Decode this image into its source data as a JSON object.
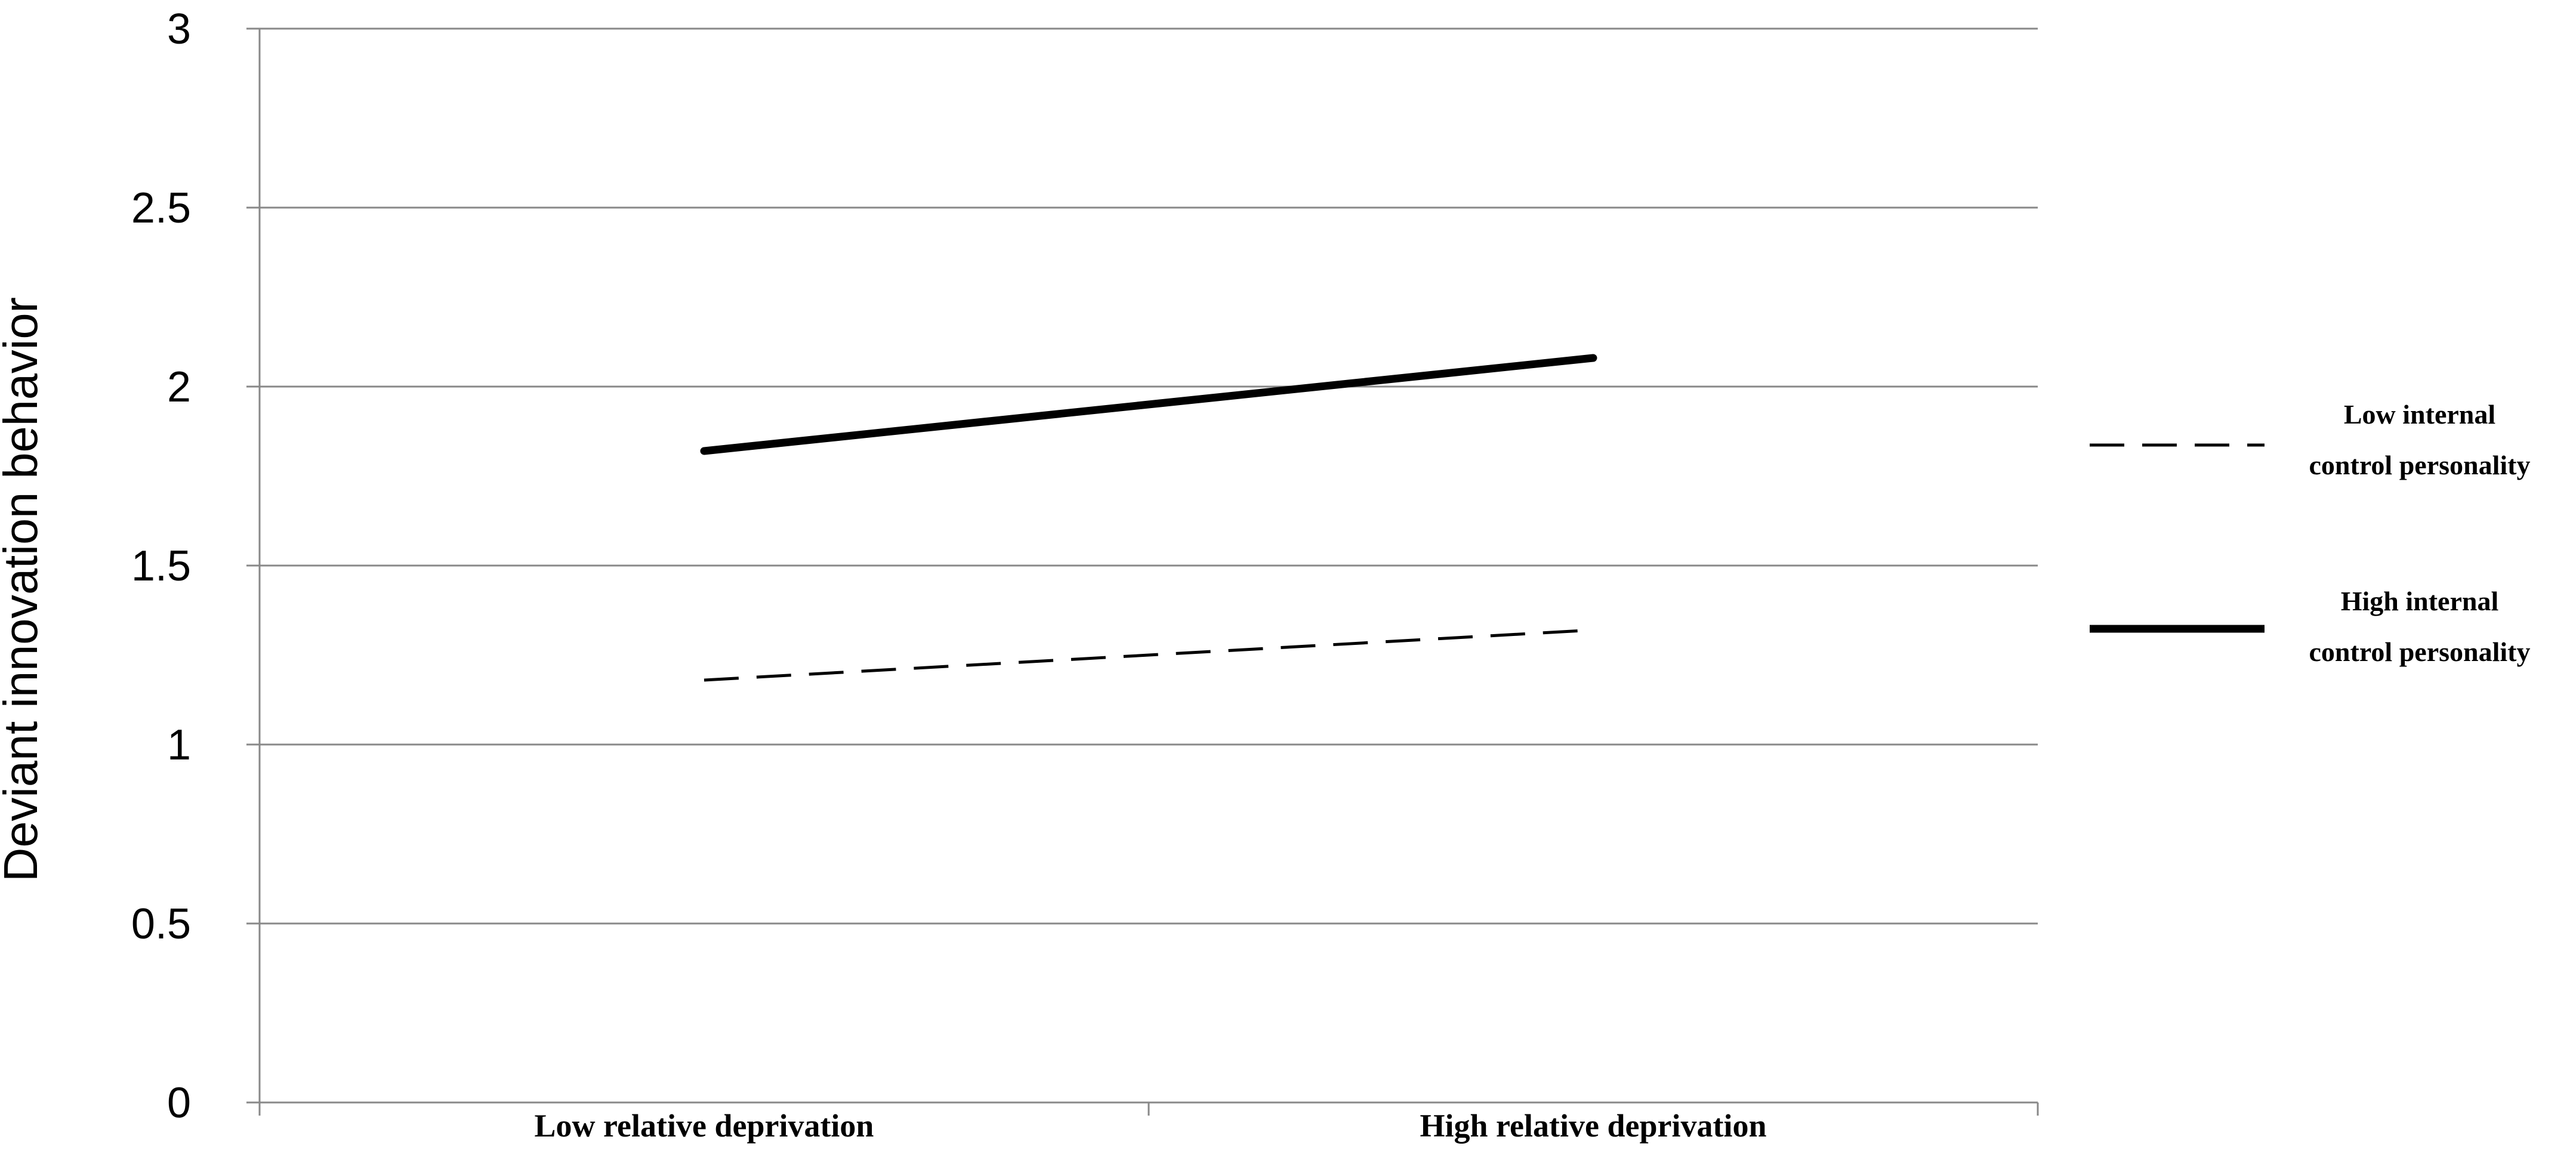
{
  "chart_data": {
    "type": "line",
    "ylabel": "Deviant innovation behavior",
    "xlabel": "",
    "categories": [
      "Low relative deprivation",
      "High relative deprivation"
    ],
    "ylim": [
      0,
      3
    ],
    "yticks": [
      "0",
      "0.5",
      "1",
      "1.5",
      "2",
      "2.5",
      "3"
    ],
    "grid": true,
    "legend_position": "right",
    "series": [
      {
        "name": "Low internal control personality",
        "name_lines": [
          "Low internal",
          "control personality"
        ],
        "values": [
          1.18,
          1.32
        ],
        "line_style": "dashed",
        "color": "#000000"
      },
      {
        "name": "High internal control personality",
        "name_lines": [
          "High internal",
          "control personality"
        ],
        "values": [
          1.82,
          2.08
        ],
        "line_style": "solid",
        "color": "#000000"
      }
    ],
    "colors": {
      "grid": "#888888",
      "axis": "#888888"
    }
  }
}
